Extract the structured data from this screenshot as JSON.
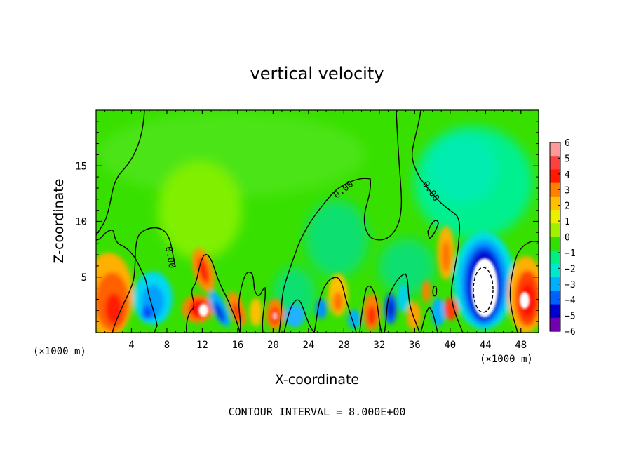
{
  "chart_data": {
    "type": "heatmap",
    "title": "vertical velocity",
    "xlabel": "X-coordinate",
    "ylabel": "Z-coordinate",
    "x_unit_left": "(×1000 m)",
    "x_unit_right": "(×1000 m)",
    "footer": "CONTOUR INTERVAL = 8.000E+00",
    "xlim": [
      0,
      50
    ],
    "ylim": [
      0,
      20
    ],
    "x_ticks": [
      4,
      8,
      12,
      16,
      20,
      24,
      28,
      32,
      36,
      40,
      44,
      48
    ],
    "y_ticks": [
      5,
      10,
      15
    ],
    "x_tick_labels": [
      "4",
      "8",
      "12",
      "16",
      "20",
      "24",
      "28",
      "32",
      "36",
      "40",
      "44",
      "48"
    ],
    "y_tick_labels": [
      "5",
      "10",
      "15"
    ],
    "colorbar": {
      "min": -6,
      "max": 6,
      "levels": [
        6,
        5,
        4,
        3,
        2,
        1,
        0,
        -1,
        -2,
        -3,
        -4,
        -5,
        -6
      ],
      "level_labels": [
        "6",
        "5",
        "4",
        "3",
        "2",
        "1",
        "0",
        "−1",
        "−2",
        "−3",
        "−4",
        "−5",
        "−6"
      ],
      "colors": [
        "#ff9a9a",
        "#ff4040",
        "#ff1a00",
        "#ff8000",
        "#ffc000",
        "#e8f000",
        "#a0f000",
        "#30e000",
        "#00f080",
        "#00e8d0",
        "#00b0ff",
        "#0060ff",
        "#0000d0",
        "#7000b0"
      ]
    },
    "contour_label": "0.00",
    "features": [
      {
        "x": 1.5,
        "z": 3.5,
        "w": 3,
        "kind": "updraft"
      },
      {
        "x": 6.5,
        "z": 3.0,
        "w": -3,
        "kind": "downdraft"
      },
      {
        "x": 11.8,
        "z": 2.5,
        "w": 5,
        "kind": "updraft"
      },
      {
        "x": 12.5,
        "z": 5.5,
        "w": 3,
        "kind": "updraft"
      },
      {
        "x": 14.5,
        "z": 1.5,
        "w": -4,
        "kind": "downdraft"
      },
      {
        "x": 16.3,
        "z": 2.0,
        "w": 4,
        "kind": "updraft"
      },
      {
        "x": 20.5,
        "z": 1.5,
        "w": 5,
        "kind": "updraft"
      },
      {
        "x": 31.0,
        "z": 1.5,
        "w": 4,
        "kind": "updraft"
      },
      {
        "x": 33.5,
        "z": 2.0,
        "w": -4,
        "kind": "downdraft"
      },
      {
        "x": 39.5,
        "z": 7.0,
        "w": 3,
        "kind": "updraft"
      },
      {
        "x": 40.5,
        "z": 2.0,
        "w": 4,
        "kind": "updraft"
      },
      {
        "x": 44.0,
        "z": 4.0,
        "w": -6,
        "kind": "downdraft"
      },
      {
        "x": 48.5,
        "z": 3.0,
        "w": 5,
        "kind": "updraft"
      }
    ]
  }
}
